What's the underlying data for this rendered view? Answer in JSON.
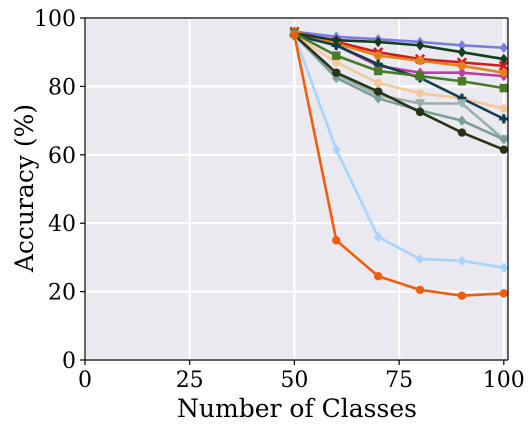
{
  "chart_data": {
    "type": "line",
    "xlabel": "Number of Classes",
    "ylabel": "Accuracy (%)",
    "xlim": [
      0,
      101
    ],
    "ylim": [
      0,
      100
    ],
    "xticks": [
      0,
      25,
      50,
      75,
      100
    ],
    "yticks": [
      0,
      20,
      40,
      60,
      80,
      100
    ],
    "grid": true,
    "background": "#e9e9ef",
    "x": [
      50,
      60,
      70,
      80,
      90,
      100
    ],
    "series": [
      {
        "color": "#7b7be8",
        "marker": "diamond",
        "values": [
          96,
          94.5,
          93.8,
          93,
          92,
          91.3
        ]
      },
      {
        "color": "#c03aa8",
        "marker": "diamond",
        "values": [
          96,
          92,
          86,
          84,
          84,
          83
        ]
      },
      {
        "color": "#cc1f1f",
        "marker": "x",
        "values": [
          96,
          93,
          90,
          88,
          87,
          86
        ]
      },
      {
        "color": "#e8801a",
        "marker": "circle",
        "values": [
          96,
          92.5,
          89,
          87.5,
          86,
          84
        ]
      },
      {
        "color": "#f5c89a",
        "marker": "circle",
        "values": [
          95,
          87,
          81,
          78,
          76.5,
          73.5
        ]
      },
      {
        "color": "#0f3f4e",
        "marker": "plus",
        "values": [
          95,
          92,
          86.5,
          82.5,
          76.5,
          70.5
        ]
      },
      {
        "color": "#123e1e",
        "marker": "diamond",
        "values": [
          95.5,
          93.5,
          93,
          92,
          90,
          88
        ]
      },
      {
        "color": "#4a7a28",
        "marker": "square",
        "values": [
          95.5,
          89,
          84.5,
          83,
          81.5,
          79.5
        ]
      },
      {
        "color": "#9ab0ad",
        "marker": "triangle-down",
        "values": [
          95,
          83.5,
          77.5,
          75,
          75,
          64.5
        ]
      },
      {
        "color": "#7a9e98",
        "marker": "diamond",
        "values": [
          95,
          82.5,
          76.5,
          73,
          70,
          64.5
        ]
      },
      {
        "color": "#2b3317",
        "marker": "circle",
        "values": [
          95,
          84,
          78.5,
          72.5,
          66.5,
          61.5
        ]
      },
      {
        "color": "#a8d4ff",
        "marker": "diamond",
        "values": [
          95,
          61.5,
          36,
          29.5,
          29,
          27
        ]
      },
      {
        "color": "#ee5e0c",
        "marker": "circle",
        "values": [
          95,
          35,
          24.5,
          20.5,
          18.8,
          19.5
        ]
      }
    ]
  }
}
